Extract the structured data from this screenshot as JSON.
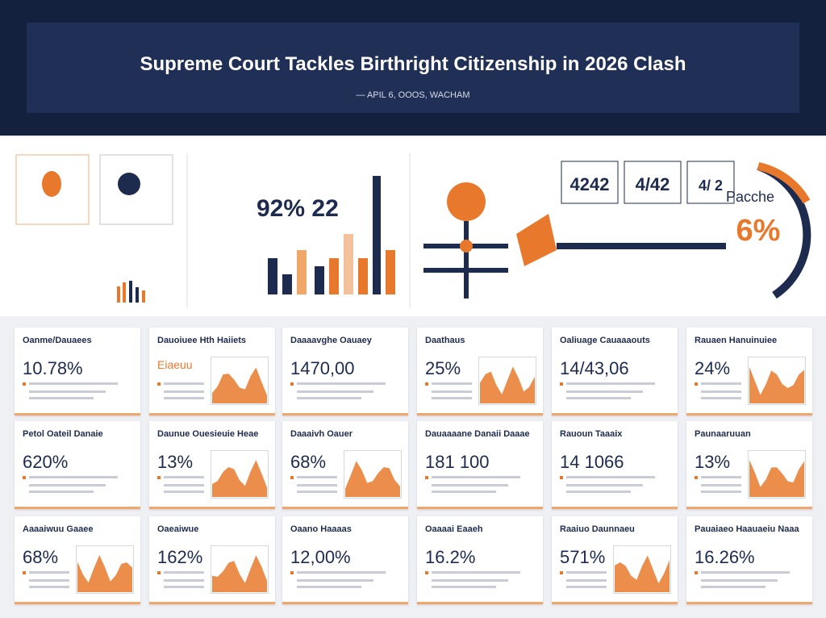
{
  "header": {
    "title": "Supreme Court Tackles Birthright Citizenship in 2026 Clash",
    "subtitle": "— APIL 6, OOOS, WACHAM"
  },
  "overview": {
    "chart_value": "92% 22",
    "stats": [
      "4242",
      "4/42",
      "4/ 2"
    ],
    "gauge_label": "Pacche",
    "gauge_value": "6%"
  },
  "cards": [
    {
      "title": "Oanme/Dauaees",
      "value": "10.78%"
    },
    {
      "title": "Dauoiuee Hth Haiiets",
      "value": "Eiaeuu"
    },
    {
      "title": "Daaaavghe Oauaey",
      "value": "1470,00"
    },
    {
      "title": "Daathaus",
      "value": "25%"
    },
    {
      "title": "Oaliuage Cauaaaouts",
      "value": "14/43,06"
    },
    {
      "title": "Rauaen Hanuinuiee",
      "value": "24%"
    },
    {
      "title": "Petol Oateil Danaie",
      "value": "620%"
    },
    {
      "title": "Daunue Ouesieuie Heae",
      "value": "13%"
    },
    {
      "title": "Daaaivh Oauer",
      "value": "68%"
    },
    {
      "title": "Dauaaaane Danaii Daaae",
      "value": "181 100"
    },
    {
      "title": "Rauoun Taaaix",
      "value": "14 1066"
    },
    {
      "title": "Paunaaruuan",
      "value": "13%"
    },
    {
      "title": "Aaaaiwuu Gaaee",
      "value": "68%"
    },
    {
      "title": "Oaeaiwue",
      "value": "162%"
    },
    {
      "title": "Oaano Haaaas",
      "value": "12,00%"
    },
    {
      "title": "Oaaaai Eaaeh",
      "value": "16.2%"
    },
    {
      "title": "Raaiuo Daunnaeu",
      "value": "571%"
    },
    {
      "title": "Pauaiaeo Haauaeiu Naaa",
      "value": "16.26%"
    }
  ]
}
